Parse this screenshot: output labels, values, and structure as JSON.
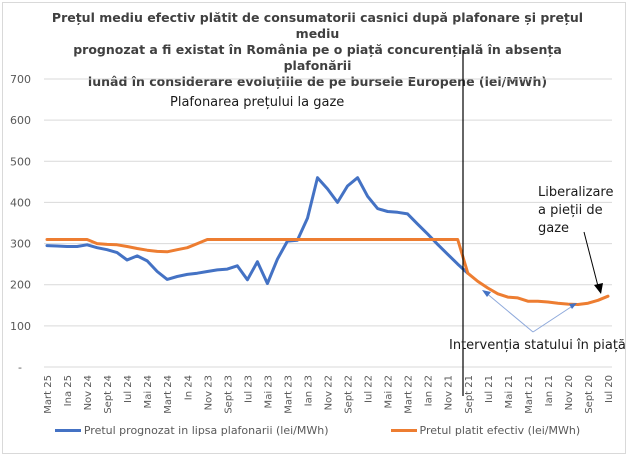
{
  "chart_data": {
    "type": "line",
    "title": "Prețul mediu efectiv plătit de consumatorii casnici după plafonare și prețul mediu prognozat a fi existat în România pe o piață concurențială în absența plafonării lunâd în considerare evoluțiile de pe bursele Europene (lei/MWh)",
    "title_lines": [
      "Prețul mediu efectiv plătit de consumatorii casnici după plafonare și prețul mediu",
      "prognozat a fi existat în România pe o piață concurențială în absența plafonării",
      "lunâd în considerare evoluțiile de pe bursele Europene (lei/MWh)"
    ],
    "xlabel": "",
    "ylabel": "",
    "ylim": [
      0,
      700
    ],
    "yticks": [
      700,
      600,
      500,
      400,
      300,
      200,
      100,
      0
    ],
    "ytick_labels": [
      "700",
      "600",
      "500",
      "400",
      "300",
      "200",
      "100",
      "-"
    ],
    "grid": true,
    "legend_position": "bottom",
    "x_tick_labels": [
      "Mart 25",
      "Ina 25",
      "Nov 24",
      "Sept 24",
      "Iul 24",
      "Mai 24",
      "Mart 24",
      "In 24",
      "Nov 23",
      "Sept 23",
      "Iul 23",
      "Mai 23",
      "Mart 23",
      "Ian 23",
      "Nov 22",
      "Sept 22",
      "Iul 22",
      "Mai 22",
      "Mart 22",
      "Ian 22",
      "Nov 21",
      "Sept 21",
      "Iul 21",
      "Mai 21",
      "Mart 21",
      "Ian 21",
      "Nov 20",
      "Sept 20",
      "Iul 20"
    ],
    "n_points": 57,
    "series": [
      {
        "name": "Pretul prognozat in lipsa plafonarii (lei/MWh)",
        "color": "#4472c4",
        "values": [
          295,
          294,
          293,
          293,
          297,
          290,
          285,
          278,
          260,
          270,
          258,
          232,
          213,
          220,
          225,
          228,
          232,
          236,
          238,
          246,
          212,
          256,
          203,
          262,
          306,
          308,
          362,
          460,
          433,
          400,
          440,
          460,
          415,
          385,
          378,
          376,
          372,
          347,
          323,
          298,
          274,
          250,
          228,
          null,
          null,
          null,
          null,
          null,
          null,
          null,
          null,
          null,
          null,
          null,
          null,
          null,
          null
        ]
      },
      {
        "name": "Pretul platit efectiv (lei/MWh)",
        "color": "#ed7d31",
        "values": [
          310,
          310,
          310,
          310,
          310,
          300,
          298,
          297,
          293,
          288,
          284,
          281,
          280,
          285,
          290,
          300,
          310,
          310,
          310,
          310,
          310,
          310,
          310,
          310,
          310,
          310,
          310,
          310,
          310,
          310,
          310,
          310,
          310,
          310,
          310,
          310,
          310,
          310,
          310,
          310,
          310,
          310,
          228,
          208,
          192,
          178,
          170,
          168,
          160,
          160,
          158,
          155,
          153,
          152,
          155,
          162,
          172
        ]
      }
    ],
    "annotations": {
      "cap_label": "Plafonarea prețului la gaze",
      "liberalization_lines": [
        "Liberalizare",
        "a pieții de",
        "gaze"
      ],
      "intervention_label": "Intervenția statului în piață"
    }
  }
}
